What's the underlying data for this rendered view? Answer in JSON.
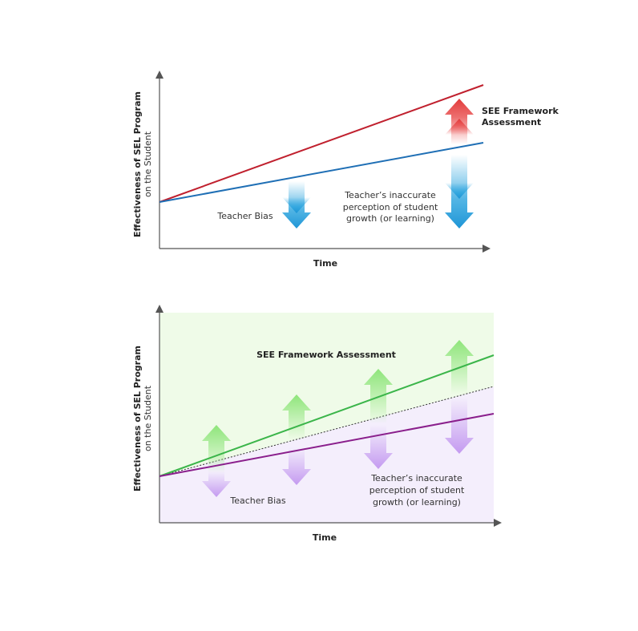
{
  "diagrams": [
    {
      "y_axis_label": [
        "Effectiveness of SEL Program",
        "on the Student"
      ],
      "x_axis_label": "Time",
      "assessment_label": [
        "SEE Framework",
        "Assessment"
      ],
      "bias_label": "Teacher Bias",
      "perception_label": [
        "Teacher’s inaccurate",
        "perception of student",
        "growth (or learning)"
      ]
    },
    {
      "y_axis_label": [
        "Effectiveness of SEL Program",
        "on the Student"
      ],
      "x_axis_label": "Time",
      "assessment_label": [
        "SEE Framework Assessment"
      ],
      "bias_label": "Teacher Bias",
      "perception_label": [
        "Teacher’s inaccurate",
        "perception of student",
        "growth (or learning)"
      ]
    }
  ]
}
